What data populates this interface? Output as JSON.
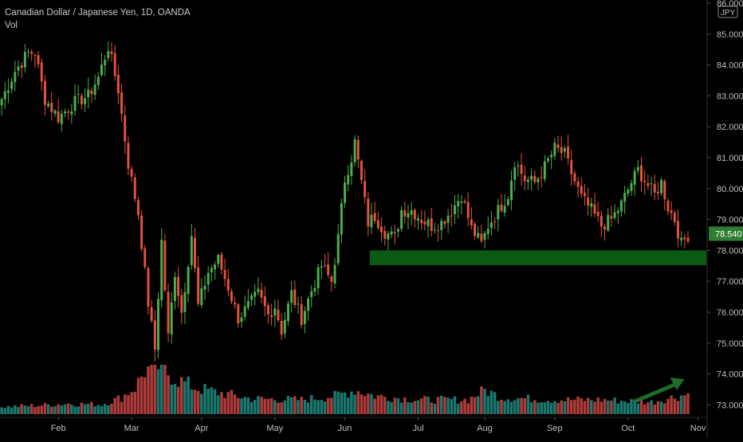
{
  "header": {
    "symbol_title": "Canadian Dollar / Japanese Yen, 1D, OANDA",
    "volume_label": "Vol"
  },
  "colors": {
    "background": "#000000",
    "up": "#26a69a",
    "down": "#ef5350",
    "up_candle": "#4caf50",
    "down_candle": "#e5533d",
    "zone": "#0a5a14",
    "arrow": "#1e6b2a",
    "price_label_bg": "#2e7d32",
    "axis_text": "#bfbfbf"
  },
  "chart_data": {
    "type": "candlestick",
    "title": "Canadian Dollar / Japanese Yen, 1D, OANDA",
    "currency": "JPY",
    "last_price": "78.540",
    "y_axis": {
      "ylim": [
        72.7,
        86.0
      ],
      "tick_labels": [
        "73.000",
        "74.000",
        "75.000",
        "76.000",
        "77.000",
        "78.000",
        "79.000",
        "80.000",
        "81.000",
        "82.000",
        "83.000",
        "84.000",
        "85.000",
        "86.000"
      ]
    },
    "x_axis": {
      "tick_labels": [
        "Feb",
        "Mar",
        "Apr",
        "May",
        "Jun",
        "Jul",
        "Aug",
        "Sep",
        "Oct",
        "Nov"
      ],
      "tick_index": [
        17,
        39,
        60,
        82,
        103,
        125,
        145,
        166,
        188,
        209
      ]
    },
    "close_anchors": [
      [
        0,
        82.9
      ],
      [
        4,
        83.8
      ],
      [
        8,
        84.4
      ],
      [
        10,
        84.4
      ],
      [
        13,
        82.9
      ],
      [
        17,
        82.3
      ],
      [
        22,
        82.8
      ],
      [
        26,
        83.0
      ],
      [
        29,
        83.6
      ],
      [
        32,
        84.6
      ],
      [
        35,
        83.2
      ],
      [
        38,
        80.8
      ],
      [
        41,
        79.2
      ],
      [
        44,
        76.3
      ],
      [
        46,
        74.8
      ],
      [
        48,
        78.3
      ],
      [
        50,
        75.2
      ],
      [
        52,
        77.3
      ],
      [
        54,
        76.0
      ],
      [
        57,
        78.5
      ],
      [
        59,
        76.2
      ],
      [
        62,
        77.3
      ],
      [
        65,
        77.7
      ],
      [
        68,
        76.8
      ],
      [
        71,
        75.8
      ],
      [
        74,
        76.2
      ],
      [
        77,
        76.6
      ],
      [
        80,
        75.9
      ],
      [
        82,
        76.2
      ],
      [
        84,
        75.4
      ],
      [
        87,
        76.6
      ],
      [
        90,
        75.8
      ],
      [
        93,
        76.7
      ],
      [
        96,
        77.5
      ],
      [
        99,
        77.0
      ],
      [
        101,
        78.4
      ],
      [
        103,
        80.3
      ],
      [
        105,
        81.0
      ],
      [
        106,
        81.5
      ],
      [
        108,
        80.2
      ],
      [
        110,
        78.9
      ],
      [
        112,
        79.1
      ],
      [
        115,
        78.6
      ],
      [
        118,
        78.4
      ],
      [
        120,
        79.3
      ],
      [
        123,
        79.3
      ],
      [
        126,
        79.0
      ],
      [
        129,
        78.8
      ],
      [
        132,
        78.9
      ],
      [
        135,
        79.3
      ],
      [
        138,
        79.8
      ],
      [
        141,
        78.7
      ],
      [
        144,
        78.2
      ],
      [
        146,
        78.8
      ],
      [
        149,
        79.3
      ],
      [
        152,
        79.8
      ],
      [
        154,
        80.9
      ],
      [
        157,
        80.3
      ],
      [
        160,
        80.2
      ],
      [
        163,
        80.7
      ],
      [
        166,
        81.3
      ],
      [
        169,
        81.1
      ],
      [
        171,
        80.5
      ],
      [
        174,
        79.7
      ],
      [
        177,
        79.3
      ],
      [
        180,
        78.8
      ],
      [
        183,
        79.0
      ],
      [
        186,
        79.5
      ],
      [
        189,
        80.2
      ],
      [
        191,
        80.6
      ],
      [
        194,
        80.1
      ],
      [
        196,
        79.8
      ],
      [
        198,
        80.2
      ],
      [
        200,
        79.4
      ],
      [
        202,
        79.0
      ],
      [
        204,
        78.2
      ],
      [
        206,
        78.5
      ]
    ],
    "volume_level_anchors": [
      [
        0,
        0.15
      ],
      [
        10,
        0.18
      ],
      [
        20,
        0.22
      ],
      [
        30,
        0.2
      ],
      [
        36,
        0.35
      ],
      [
        40,
        0.55
      ],
      [
        43,
        0.9
      ],
      [
        47,
        1.0
      ],
      [
        52,
        0.75
      ],
      [
        58,
        0.55
      ],
      [
        65,
        0.45
      ],
      [
        75,
        0.32
      ],
      [
        90,
        0.3
      ],
      [
        100,
        0.38
      ],
      [
        106,
        0.5
      ],
      [
        112,
        0.38
      ],
      [
        125,
        0.3
      ],
      [
        140,
        0.3
      ],
      [
        145,
        0.5
      ],
      [
        150,
        0.35
      ],
      [
        165,
        0.3
      ],
      [
        180,
        0.3
      ],
      [
        195,
        0.25
      ],
      [
        206,
        0.42
      ]
    ],
    "support_zone": {
      "from": 77.52,
      "to": 78.0,
      "x_start_index": 111,
      "x_end_index": 212
    }
  }
}
